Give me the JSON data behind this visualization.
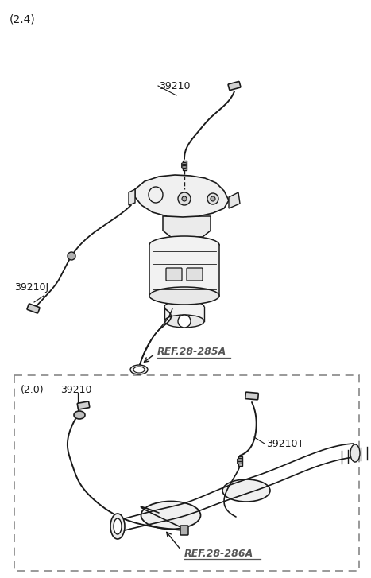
{
  "bg_color": "#ffffff",
  "line_color": "#1a1a1a",
  "ref_color": "#555555",
  "labels": {
    "main_title": "(2.4)",
    "label_39210_top": "39210",
    "label_39210J": "39210J",
    "label_ref285": "REF.28-285A",
    "label_20_title": "(2.0)",
    "label_39210_bot": "39210",
    "label_39210T": "39210T",
    "label_ref286": "REF.28-286A"
  }
}
